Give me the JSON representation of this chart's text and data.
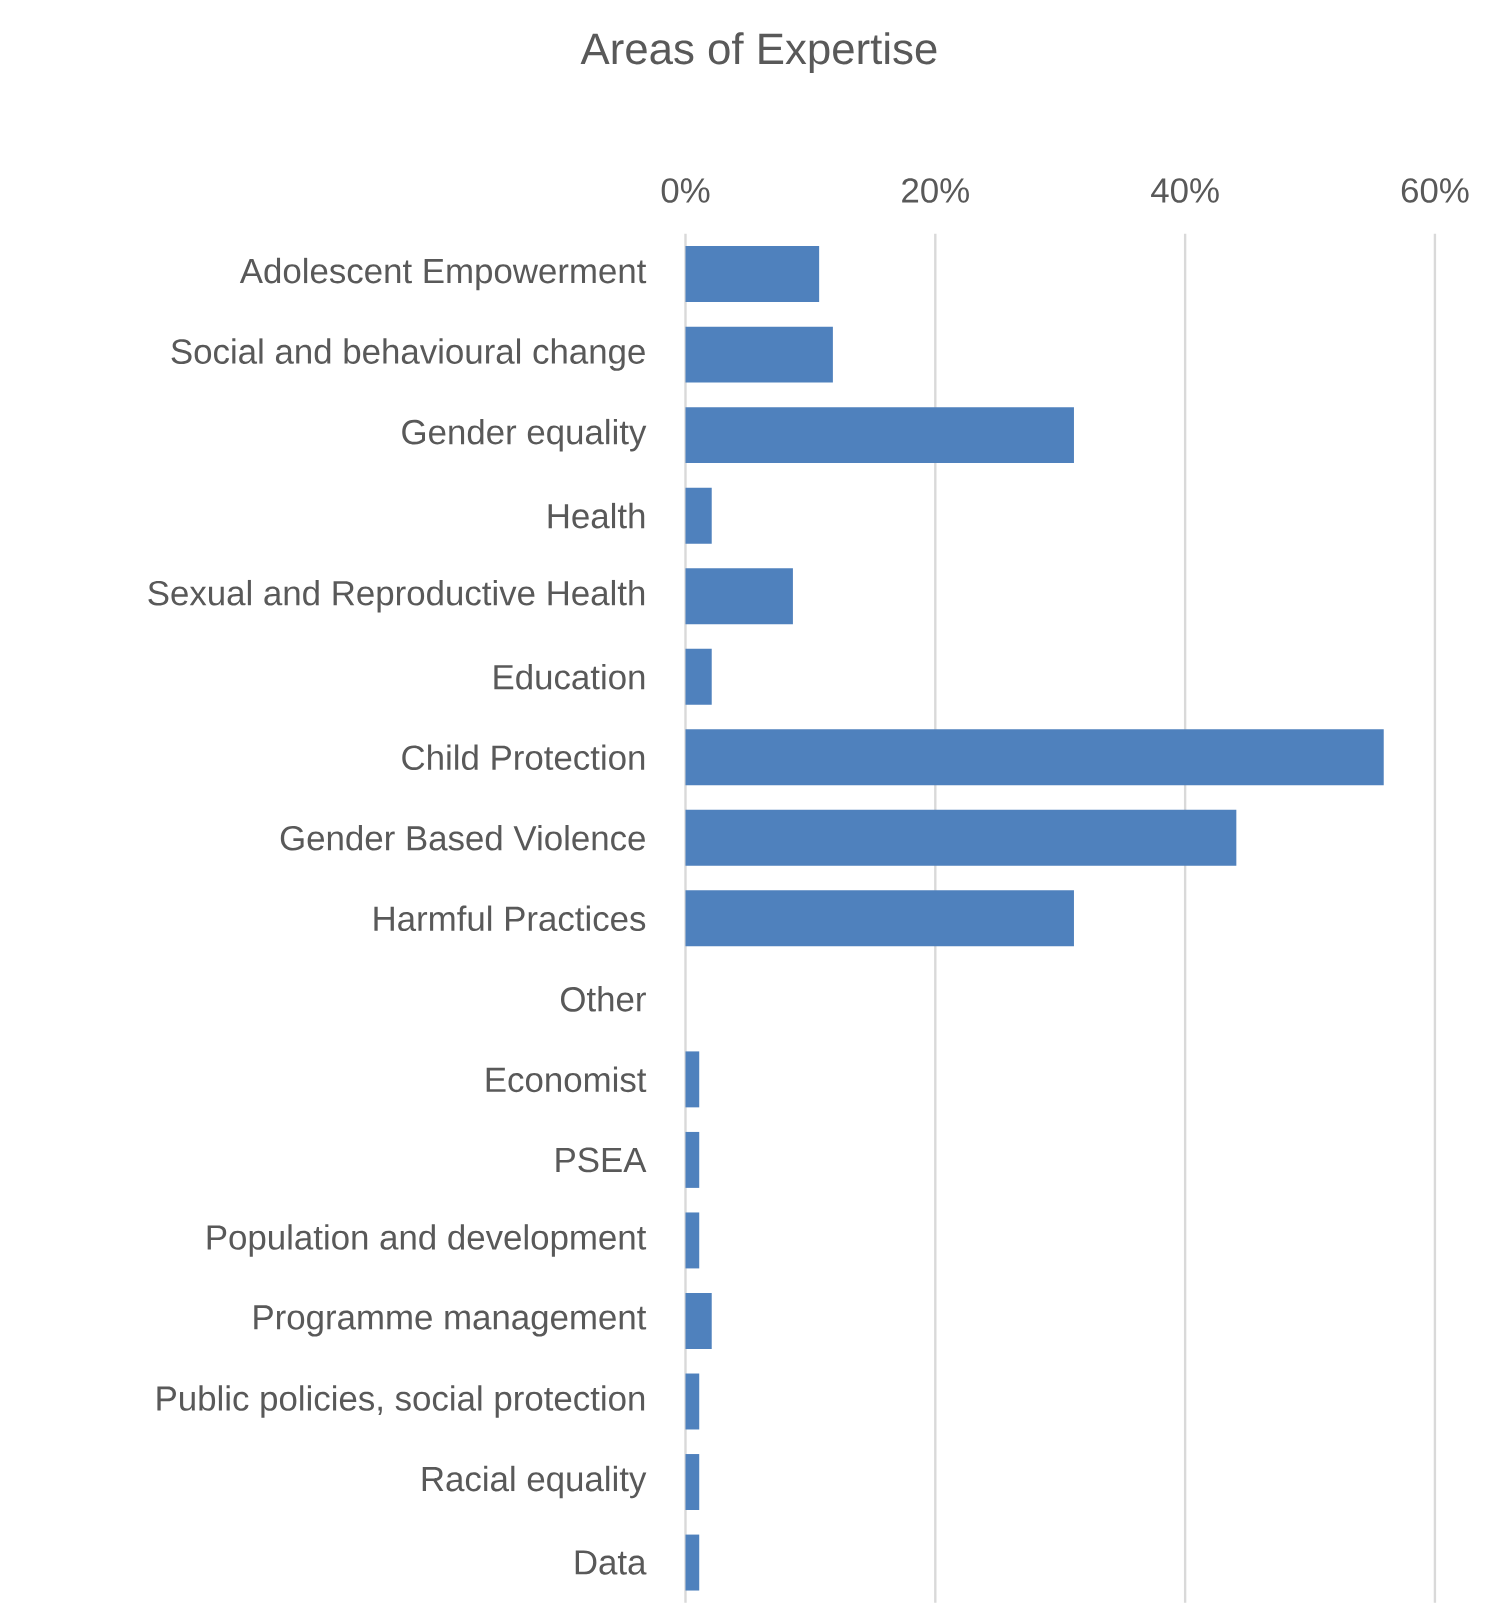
{
  "chart_data": {
    "type": "bar",
    "orientation": "horizontal",
    "title": "Areas of Expertise",
    "categories": [
      "Adolescent Empowerment",
      "Social and behavioural change",
      "Gender equality",
      "Health",
      "Sexual and Reproductive Health",
      "Education",
      "Child Protection",
      "Gender Based Violence",
      "Harmful Practices",
      "Other",
      "Economist",
      "PSEA",
      "Population and development",
      "Programme management",
      "Public policies, social protection",
      "Racial equality",
      "Data"
    ],
    "values": [
      10.7,
      11.8,
      31.1,
      2.1,
      8.6,
      2.1,
      55.9,
      44.1,
      31.1,
      0,
      1.1,
      1.1,
      1.1,
      2.1,
      1.1,
      1.1,
      1.1
    ],
    "color": "#4f81bd",
    "xlim": [
      0,
      60
    ],
    "xticks": [
      {
        "value": 0,
        "label": "0%"
      },
      {
        "value": 20,
        "label": "20%"
      },
      {
        "value": 40,
        "label": "40%"
      },
      {
        "value": 60,
        "label": "60%"
      }
    ],
    "grid": "x"
  }
}
